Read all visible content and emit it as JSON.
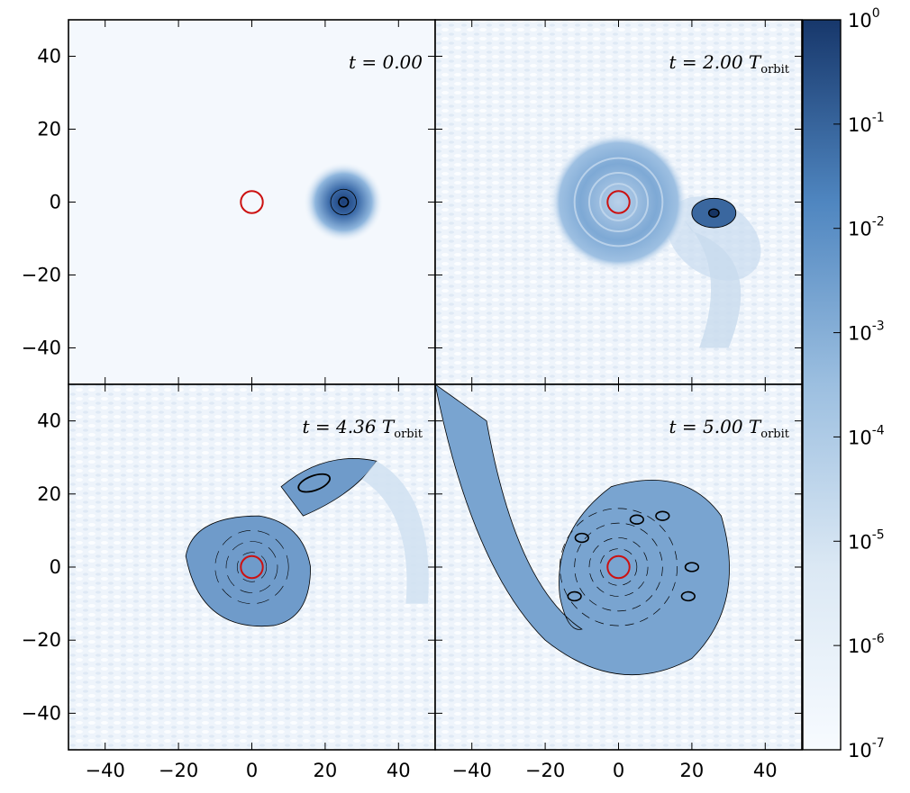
{
  "chart_data": {
    "type": "heatmap",
    "layout": "2x2 panel grid with shared axes and a shared logarithmic colorbar",
    "panels": [
      {
        "label_main": "t = 0.00",
        "label_sub": "",
        "description": "compact blob at x≈25, y≈0; red circle at origin"
      },
      {
        "label_main": "t = 2.00 T",
        "label_sub": "orbit",
        "description": "disk forming around origin; blob at x≈26, y≈-3 with tail"
      },
      {
        "label_main": "t = 4.36 T",
        "label_sub": "orbit",
        "description": "spiral disk; elongated blob at x≈17, y≈23"
      },
      {
        "label_main": "t = 5.00 T",
        "label_sub": "orbit",
        "description": "large spiral arm extending to upper-left"
      }
    ],
    "axes": {
      "xlim": [
        -50,
        50
      ],
      "ylim": [
        -50,
        50
      ],
      "xticks": [
        -40,
        -20,
        0,
        20,
        40
      ],
      "yticks": [
        40,
        20,
        0,
        -20,
        -40
      ],
      "xtick_labels": [
        "−40",
        "−20",
        "0",
        "20",
        "40"
      ],
      "ytick_labels": [
        "40",
        "20",
        "0",
        "−20",
        "−40"
      ]
    },
    "colorbar": {
      "scale": "log",
      "range": [
        1e-07,
        1
      ],
      "colormap": [
        "#f7fbff",
        "#c6dbef",
        "#6baed6",
        "#2171b5",
        "#08306b"
      ],
      "ticks": [
        {
          "base": "10",
          "exp": "0",
          "value": 1
        },
        {
          "base": "10",
          "exp": "-1",
          "value": 0.1
        },
        {
          "base": "10",
          "exp": "-2",
          "value": 0.01
        },
        {
          "base": "10",
          "exp": "-3",
          "value": 0.001
        },
        {
          "base": "10",
          "exp": "-4",
          "value": 0.0001
        },
        {
          "base": "10",
          "exp": "-5",
          "value": 1e-05
        },
        {
          "base": "10",
          "exp": "-6",
          "value": 1e-06
        },
        {
          "base": "10",
          "exp": "-7",
          "value": 1e-07
        }
      ]
    },
    "colors": {
      "marker_circle": "#cc1111",
      "contour": "#000000",
      "background_field": "#f5f9fd",
      "density_mid": "#8fb4da"
    }
  }
}
